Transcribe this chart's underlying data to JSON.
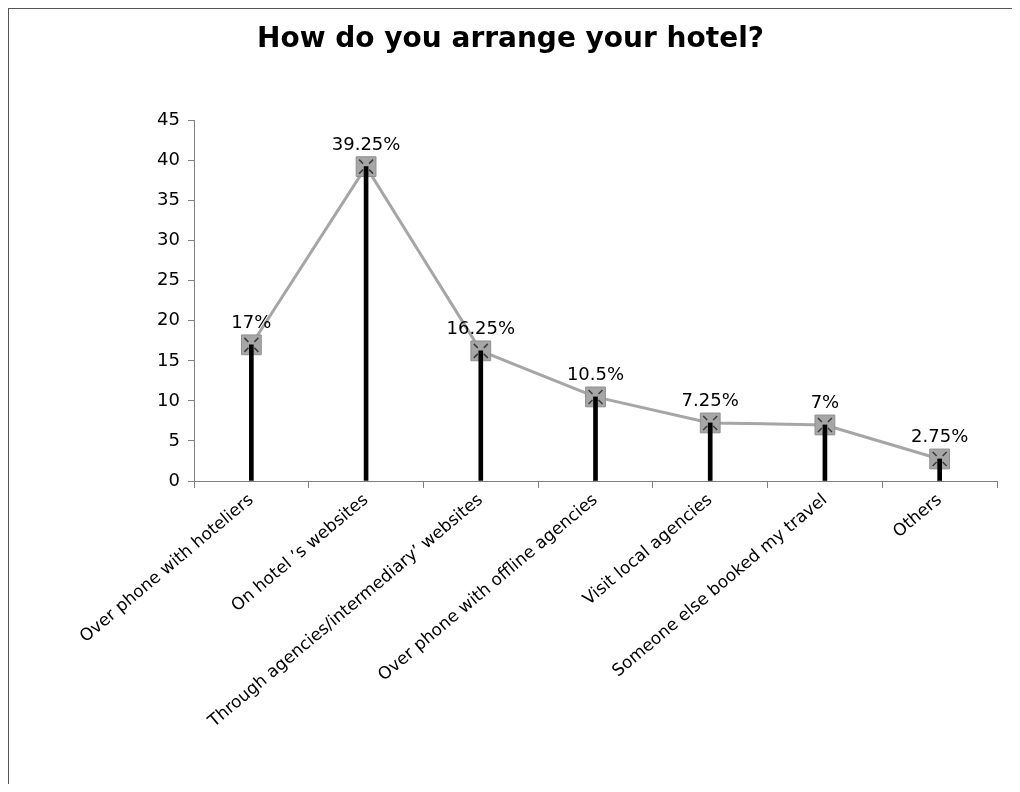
{
  "chart_data": {
    "type": "line",
    "title": "How do you arrange your hotel?",
    "categories": [
      "Over phone with hoteliers",
      "On hotel ’s websites",
      "Through agencies/intermediary’ websites",
      "Over phone with offline agencies",
      "Visit local agencies",
      "Someone else booked my travel",
      "Others"
    ],
    "series": [
      {
        "type": "bar",
        "color": "#000000",
        "values": [
          17,
          39.25,
          16.25,
          10.5,
          7.25,
          7,
          2.75
        ]
      },
      {
        "color": "#a6a6a6",
        "values": [
          17,
          39.25,
          16.25,
          10.5,
          7.25,
          7,
          2.75
        ],
        "value_labels": [
          "17%",
          "39.25%",
          "16.25%",
          "10.5%",
          "7.25%",
          "7%",
          "2.75%"
        ]
      }
    ],
    "ylim": [
      0,
      45
    ],
    "yticks": [
      0,
      5,
      10,
      15,
      20,
      25,
      30,
      35,
      40,
      45
    ],
    "marker": "square"
  }
}
